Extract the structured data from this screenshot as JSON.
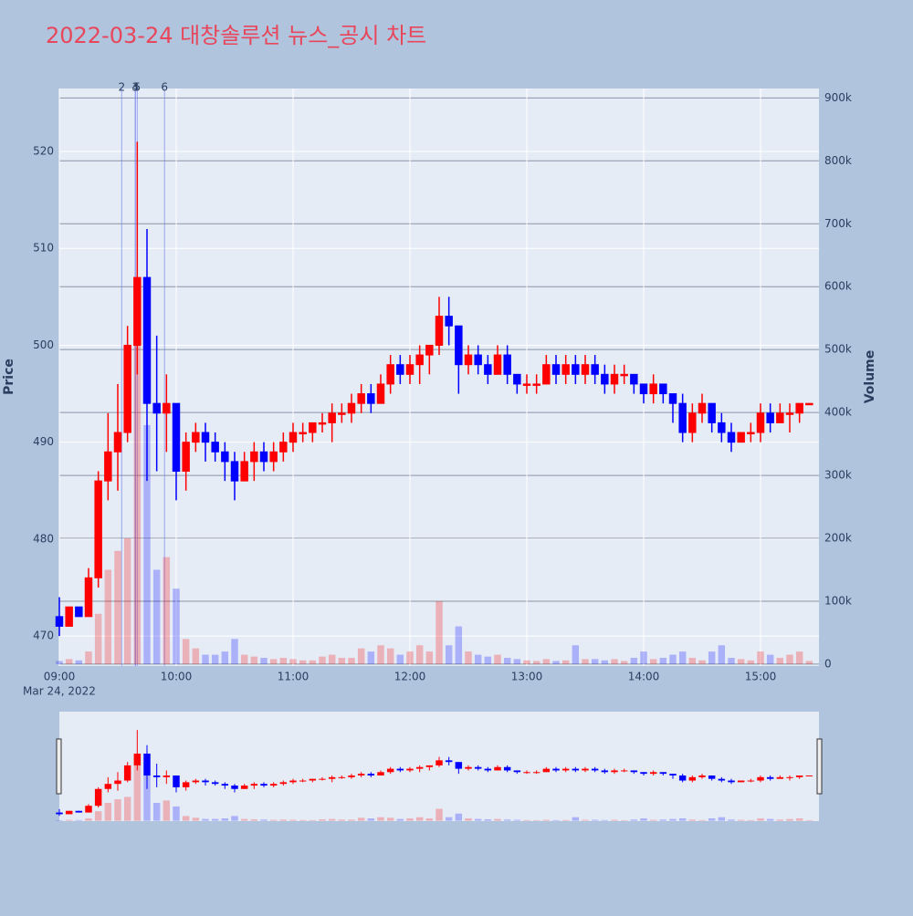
{
  "chart_data": {
    "type": "candlestick",
    "title": "2022-03-24 대창솔루션 뉴스_공시 차트",
    "y_label": "Price",
    "y2_label": "Volume",
    "x_date_label": "Mar 24, 2022",
    "increasing_color": "#ff0000",
    "decreasing_color": "#0000ff",
    "xlim": [
      "09:00",
      "15:30"
    ],
    "xticks": [
      "09:00",
      "10:00",
      "11:00",
      "12:00",
      "13:00",
      "14:00",
      "15:00"
    ],
    "ylim": [
      466.9,
      526.5
    ],
    "yticks": [
      470,
      480,
      490,
      500,
      510,
      520
    ],
    "y2lim": [
      -3000,
      915000
    ],
    "y2ticks": [
      0,
      {
        "value": 100000,
        "label": "100k"
      },
      {
        "value": 200000,
        "label": "200k"
      },
      {
        "value": 300000,
        "label": "300k"
      },
      {
        "value": 400000,
        "label": "400k"
      },
      {
        "value": 500000,
        "label": "500k"
      },
      {
        "value": 600000,
        "label": "600k"
      },
      {
        "value": 700000,
        "label": "700k"
      },
      {
        "value": 800000,
        "label": "800k"
      },
      {
        "value": 900000,
        "label": "900k"
      }
    ],
    "grid": true,
    "range_slider": true,
    "annotations": [
      {
        "x": "09:32",
        "text": "2"
      },
      {
        "x": "09:39",
        "text": "3"
      },
      {
        "x": "09:39",
        "text": "4"
      },
      {
        "x": "09:40",
        "text": "5"
      },
      {
        "x": "09:54",
        "text": "6"
      }
    ],
    "x": [
      "09:00",
      "09:05",
      "09:10",
      "09:15",
      "09:20",
      "09:25",
      "09:30",
      "09:35",
      "09:40",
      "09:45",
      "09:50",
      "09:55",
      "10:00",
      "10:05",
      "10:10",
      "10:15",
      "10:20",
      "10:25",
      "10:30",
      "10:35",
      "10:40",
      "10:45",
      "10:50",
      "10:55",
      "11:00",
      "11:05",
      "11:10",
      "11:15",
      "11:20",
      "11:25",
      "11:30",
      "11:35",
      "11:40",
      "11:45",
      "11:50",
      "11:55",
      "12:00",
      "12:05",
      "12:10",
      "12:15",
      "12:20",
      "12:25",
      "12:30",
      "12:35",
      "12:40",
      "12:45",
      "12:50",
      "12:55",
      "13:00",
      "13:05",
      "13:10",
      "13:15",
      "13:20",
      "13:25",
      "13:30",
      "13:35",
      "13:40",
      "13:45",
      "13:50",
      "13:55",
      "14:00",
      "14:05",
      "14:10",
      "14:15",
      "14:20",
      "14:25",
      "14:30",
      "14:35",
      "14:40",
      "14:45",
      "14:50",
      "14:55",
      "15:00",
      "15:05",
      "15:10",
      "15:15",
      "15:20",
      "15:25"
    ],
    "open": [
      472,
      471,
      473,
      472,
      476,
      486,
      489,
      491,
      500,
      507,
      494,
      493,
      494,
      487,
      490,
      491,
      490,
      489,
      488,
      486,
      488,
      489,
      488,
      489,
      490,
      491,
      491,
      492,
      492,
      493,
      493,
      494,
      495,
      494,
      496,
      498,
      497,
      498,
      499,
      500,
      503,
      502,
      498,
      499,
      498,
      497,
      499,
      497,
      496,
      496,
      496,
      498,
      497,
      498,
      497,
      498,
      497,
      496,
      497,
      497,
      496,
      495,
      496,
      495,
      494,
      491,
      493,
      494,
      492,
      491,
      490,
      491,
      491,
      493,
      492,
      493,
      493,
      494
    ],
    "high": [
      474,
      473,
      473,
      477,
      487,
      493,
      496,
      502,
      521,
      512,
      501,
      497,
      494,
      491,
      492,
      492,
      491,
      490,
      489,
      489,
      490,
      490,
      490,
      491,
      492,
      492,
      492,
      493,
      494,
      494,
      495,
      496,
      496,
      497,
      499,
      499,
      499,
      500,
      500,
      505,
      505,
      502,
      500,
      500,
      499,
      500,
      500,
      497,
      497,
      497,
      499,
      499,
      499,
      499,
      499,
      499,
      498,
      498,
      498,
      497,
      496,
      497,
      496,
      495,
      495,
      494,
      495,
      494,
      493,
      492,
      491,
      492,
      494,
      494,
      494,
      494,
      494,
      494
    ],
    "low": [
      470,
      471,
      472,
      472,
      475,
      484,
      485,
      490,
      497,
      486,
      487,
      489,
      484,
      485,
      489,
      488,
      488,
      486,
      484,
      486,
      486,
      487,
      487,
      488,
      489,
      490,
      490,
      491,
      490,
      492,
      492,
      493,
      493,
      494,
      495,
      496,
      496,
      496,
      497,
      499,
      500,
      495,
      497,
      497,
      496,
      497,
      496,
      495,
      495,
      495,
      496,
      496,
      496,
      496,
      496,
      496,
      495,
      495,
      496,
      495,
      494,
      494,
      494,
      492,
      490,
      490,
      492,
      491,
      490,
      489,
      490,
      490,
      490,
      491,
      492,
      491,
      492,
      494
    ],
    "close": [
      471,
      473,
      472,
      476,
      486,
      489,
      491,
      500,
      507,
      494,
      493,
      494,
      487,
      490,
      491,
      490,
      489,
      488,
      486,
      488,
      489,
      488,
      489,
      490,
      491,
      491,
      492,
      492,
      493,
      493,
      494,
      495,
      494,
      496,
      498,
      497,
      498,
      499,
      500,
      503,
      502,
      498,
      499,
      498,
      497,
      499,
      497,
      496,
      496,
      496,
      498,
      497,
      498,
      497,
      498,
      497,
      496,
      497,
      497,
      496,
      495,
      496,
      495,
      494,
      491,
      493,
      494,
      492,
      491,
      490,
      491,
      491,
      493,
      492,
      493,
      493,
      494,
      494
    ],
    "volume": [
      5000,
      8000,
      6000,
      20000,
      80000,
      150000,
      180000,
      200000,
      560000,
      380000,
      150000,
      170000,
      120000,
      40000,
      25000,
      15000,
      15000,
      20000,
      40000,
      15000,
      12000,
      10000,
      8000,
      10000,
      8000,
      6000,
      6000,
      12000,
      15000,
      10000,
      10000,
      25000,
      20000,
      30000,
      25000,
      15000,
      20000,
      30000,
      20000,
      100000,
      30000,
      60000,
      20000,
      15000,
      12000,
      15000,
      10000,
      8000,
      6000,
      5000,
      8000,
      5000,
      6000,
      30000,
      8000,
      8000,
      6000,
      8000,
      5000,
      10000,
      20000,
      8000,
      10000,
      15000,
      20000,
      10000,
      6000,
      20000,
      30000,
      10000,
      8000,
      6000,
      20000,
      15000,
      10000,
      15000,
      20000,
      5000
    ]
  }
}
